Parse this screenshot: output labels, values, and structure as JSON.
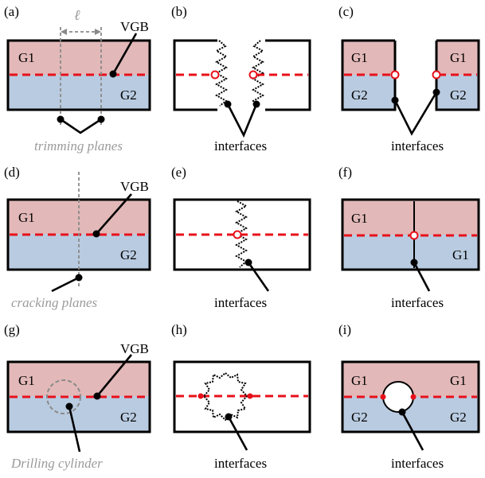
{
  "panel_tags": [
    "(a)",
    "(b)",
    "(c)",
    "(d)",
    "(e)",
    "(f)",
    "(g)",
    "(h)",
    "(i)"
  ],
  "grain_labels": {
    "g1": "G1",
    "g2": "G2"
  },
  "vgb_label": "VGB",
  "ell_label": "ℓ",
  "interfaces_label": "interfaces",
  "trimming_label": "trimming planes",
  "cracking_label": "cracking planes",
  "drilling_label": "Drilling cylinder",
  "colors": {
    "grain1_fill": "#e2b8b8",
    "grain2_fill": "#b9cbe0",
    "grain_boundary": "#e8101a",
    "outline": "#000000",
    "guide": "#9a9a9a"
  }
}
